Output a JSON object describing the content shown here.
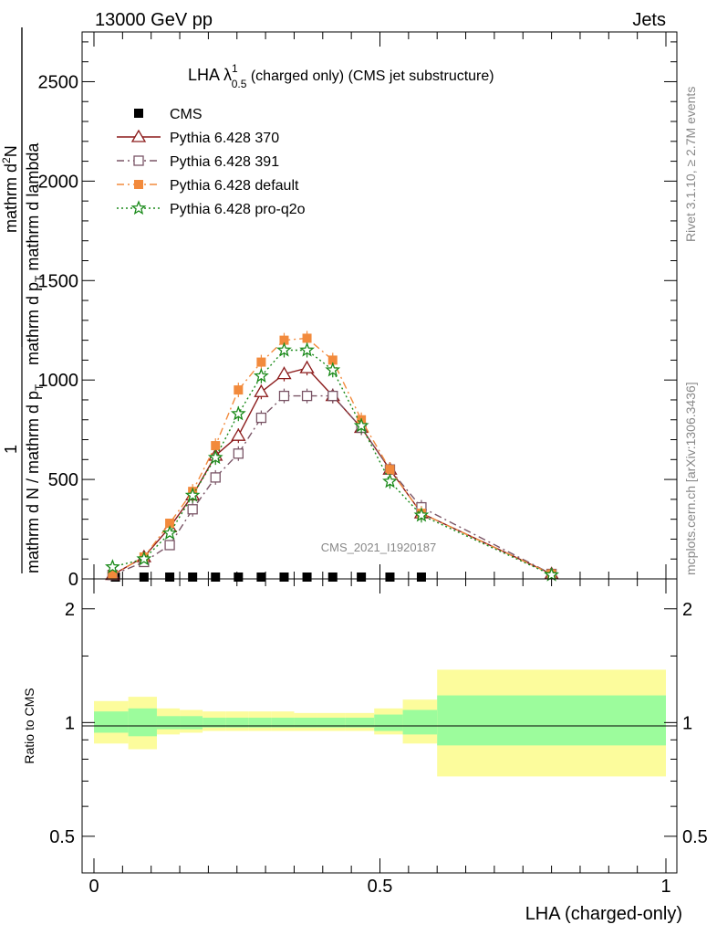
{
  "header": {
    "left": "13000 GeV pp",
    "right": "Jets"
  },
  "side_labels": {
    "rivet": "Rivet 3.1.10, ≥ 2.7M events",
    "mcplots": "mcplots.cern.ch [arXiv:1306.3436]"
  },
  "chart_data": [
    {
      "type": "line",
      "title_main": "LHA λ",
      "title_sup": "1",
      "title_sub": "0.5",
      "title_rest": " (charged only) (CMS jet substructure)",
      "watermark": "CMS_2021_I1920187",
      "ylabel_num": "1",
      "ylabel_den": "mathrm d N / mathrm d p",
      "ylabel_den_sub": "T",
      "ylabel_frac_num": "mathrm d",
      "ylabel_frac_sup": "2",
      "ylabel_frac_numrest": "N",
      "ylabel_frac_den": "mathrm d p",
      "ylabel_frac_den_sub": "T",
      "ylabel_frac_den_rest": " mathrm d lambda",
      "xlim": [
        -0.02,
        1.02
      ],
      "ylim": [
        0,
        2750
      ],
      "yticks": [
        0,
        500,
        1000,
        1500,
        2000,
        2500
      ],
      "ytick_labels": [
        "0",
        "500",
        "1000",
        "1500",
        "2000",
        "2500"
      ],
      "legend_position": "top-left",
      "series": [
        {
          "name": "CMS",
          "color": "#000000",
          "marker": "square-filled",
          "x": [
            0.0375,
            0.0875,
            0.1325,
            0.1725,
            0.2125,
            0.2525,
            0.2925,
            0.3325,
            0.3725,
            0.4175,
            0.4675,
            0.5175,
            0.5725
          ],
          "y": [
            5,
            5,
            5,
            5,
            5,
            5,
            5,
            5,
            5,
            5,
            5,
            5,
            5
          ]
        },
        {
          "name": "Pythia 6.428 370",
          "color": "#8b1a1a",
          "marker": "triangle-open",
          "dash": "",
          "x": [
            0.0325,
            0.0875,
            0.1325,
            0.1725,
            0.2125,
            0.2525,
            0.2925,
            0.3325,
            0.3725,
            0.4175,
            0.4675,
            0.5175,
            0.5725,
            0.8
          ],
          "y": [
            20,
            110,
            260,
            420,
            620,
            720,
            940,
            1030,
            1060,
            920,
            760,
            550,
            330,
            25
          ]
        },
        {
          "name": "Pythia 6.428 391",
          "color": "#7a5566",
          "marker": "square-open",
          "dash": "8,4,2,4",
          "x": [
            0.0325,
            0.0875,
            0.1325,
            0.1725,
            0.2125,
            0.2525,
            0.2925,
            0.3325,
            0.3725,
            0.4175,
            0.4675,
            0.5175,
            0.5725,
            0.8
          ],
          "y": [
            20,
            85,
            170,
            350,
            510,
            630,
            810,
            920,
            920,
            920,
            760,
            550,
            360,
            25
          ]
        },
        {
          "name": "Pythia 6.428 default",
          "color": "#f28a3c",
          "marker": "square-filled",
          "dash": "8,4,2,4",
          "x": [
            0.0325,
            0.0875,
            0.1325,
            0.1725,
            0.2125,
            0.2525,
            0.2925,
            0.3325,
            0.3725,
            0.4175,
            0.4675,
            0.5175,
            0.5725,
            0.8
          ],
          "y": [
            20,
            110,
            280,
            440,
            670,
            950,
            1090,
            1200,
            1210,
            1100,
            800,
            550,
            330,
            25
          ]
        },
        {
          "name": "Pythia 6.428 pro-q2o",
          "color": "#1a8a1a",
          "marker": "star-open",
          "dash": "2,3",
          "x": [
            0.0325,
            0.0875,
            0.1325,
            0.1725,
            0.2125,
            0.2525,
            0.2925,
            0.3325,
            0.3725,
            0.4175,
            0.4675,
            0.5175,
            0.5725,
            0.8
          ],
          "y": [
            60,
            100,
            230,
            420,
            610,
            830,
            1020,
            1150,
            1150,
            1050,
            770,
            490,
            320,
            20
          ]
        }
      ]
    },
    {
      "type": "area",
      "ylabel": "Ratio to CMS",
      "xlabel": "LHA (charged-only)",
      "xlim": [
        -0.02,
        1.02
      ],
      "ylim": [
        0.4,
        2.4
      ],
      "log_y": true,
      "yticks": [
        0.5,
        1,
        2
      ],
      "ytick_labels": [
        "0.5",
        "1",
        "2"
      ],
      "xticks": [
        0,
        0.5,
        1
      ],
      "xtick_labels": [
        "0",
        "0.5",
        "1"
      ],
      "bin_edges": [
        0.0,
        0.06,
        0.11,
        0.15,
        0.19,
        0.23,
        0.27,
        0.31,
        0.35,
        0.39,
        0.44,
        0.49,
        0.54,
        0.6,
        1.0
      ],
      "inner_band": [
        [
          0.94,
          1.07
        ],
        [
          0.92,
          1.09
        ],
        [
          0.96,
          1.04
        ],
        [
          0.96,
          1.04
        ],
        [
          0.97,
          1.03
        ],
        [
          0.97,
          1.03
        ],
        [
          0.97,
          1.03
        ],
        [
          0.97,
          1.03
        ],
        [
          0.97,
          1.03
        ],
        [
          0.97,
          1.03
        ],
        [
          0.97,
          1.03
        ],
        [
          0.95,
          1.05
        ],
        [
          0.93,
          1.08
        ],
        [
          0.87,
          1.18
        ]
      ],
      "outer_band": [
        [
          0.88,
          1.14
        ],
        [
          0.85,
          1.17
        ],
        [
          0.93,
          1.09
        ],
        [
          0.94,
          1.08
        ],
        [
          0.95,
          1.07
        ],
        [
          0.95,
          1.07
        ],
        [
          0.95,
          1.07
        ],
        [
          0.95,
          1.07
        ],
        [
          0.95,
          1.06
        ],
        [
          0.95,
          1.06
        ],
        [
          0.95,
          1.06
        ],
        [
          0.93,
          1.09
        ],
        [
          0.88,
          1.15
        ],
        [
          0.72,
          1.38
        ]
      ],
      "inner_color": "#9cfc9c",
      "outer_color": "#fcfc9c"
    }
  ]
}
